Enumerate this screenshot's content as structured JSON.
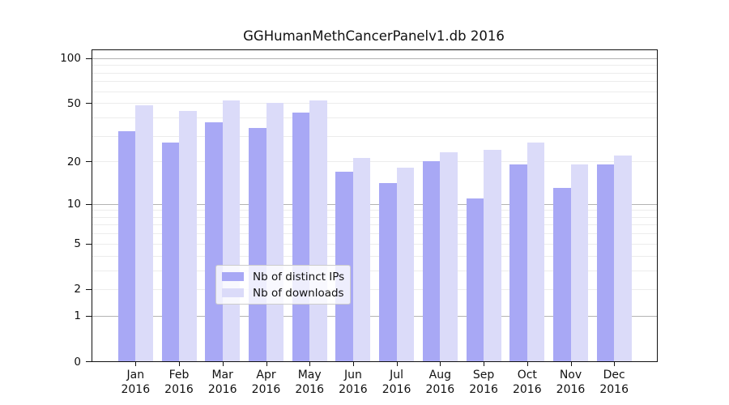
{
  "title": "GGHumanMethCancerPanelv1.db 2016",
  "chart_data": {
    "type": "bar",
    "title": "GGHumanMethCancerPanelv1.db 2016",
    "categories": [
      "Jan",
      "Feb",
      "Mar",
      "Apr",
      "May",
      "Jun",
      "Jul",
      "Aug",
      "Sep",
      "Oct",
      "Nov",
      "Dec"
    ],
    "category_year": "2016",
    "series": [
      {
        "name": "Nb of distinct IPs",
        "color": "#a8a8f5",
        "values": [
          32,
          27,
          37,
          34,
          43,
          17,
          14,
          20,
          11,
          19,
          13,
          19
        ]
      },
      {
        "name": "Nb of downloads",
        "color": "#dbdbf9",
        "values": [
          48,
          44,
          52,
          50,
          52,
          21,
          18,
          23,
          24,
          27,
          19,
          22
        ]
      }
    ],
    "xlabel": "",
    "ylabel": "",
    "yscale": "log1p",
    "ylim": [
      0,
      100
    ],
    "y_ticks": [
      0,
      1,
      2,
      5,
      10,
      20,
      50,
      100
    ],
    "major_gridlines": [
      1,
      10,
      100
    ],
    "minor_gridlines": [
      2,
      3,
      4,
      5,
      6,
      7,
      8,
      9,
      20,
      30,
      40,
      50,
      60,
      70,
      80,
      90
    ],
    "grid": "on",
    "legend_position": "bottom-center",
    "colors": {
      "axis": "#111111",
      "major_grid": "#b3b3b3",
      "minor_grid": "#ececec",
      "legend_border": "#cccccc"
    }
  }
}
